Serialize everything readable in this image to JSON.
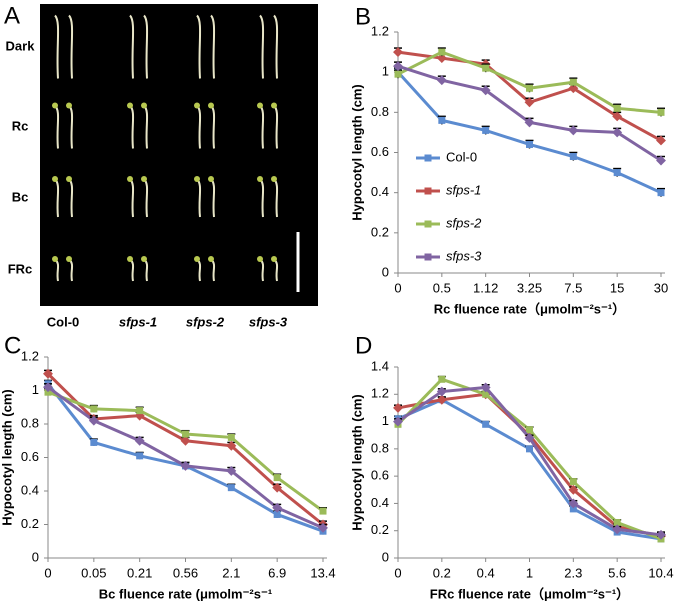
{
  "panel_a": {
    "letter": "A",
    "row_labels": [
      "Dark",
      "Rc",
      "Bc",
      "FRc"
    ],
    "column_labels": [
      "Col-0",
      "sfps-1",
      "sfps-2",
      "sfps-3"
    ]
  },
  "chart_data": [
    {
      "type": "line",
      "letter": "B",
      "x_label": "Rc fluence rate（μmolm⁻²s⁻¹）",
      "y_label": "Hypocotyl length (cm)",
      "categories": [
        "0",
        "0.5",
        "1.12",
        "3.25",
        "7.5",
        "15",
        "30"
      ],
      "ylim": [
        0,
        1.2
      ],
      "yticks": [
        0,
        0.2,
        0.4,
        0.6,
        0.8,
        1,
        1.2
      ],
      "legend": "left",
      "series": [
        {
          "name": "Col-0",
          "color": "#5b8bd0",
          "values": [
            1.0,
            0.76,
            0.71,
            0.64,
            0.58,
            0.5,
            0.4
          ],
          "errors": [
            0.02,
            0.02,
            0.02,
            0.02,
            0.02,
            0.02,
            0.02
          ]
        },
        {
          "name": "sfps-1",
          "color": "#c0504d",
          "values": [
            1.1,
            1.07,
            1.04,
            0.85,
            0.92,
            0.78,
            0.66
          ],
          "errors": [
            0.02,
            0.02,
            0.02,
            0.02,
            0.02,
            0.02,
            0.02
          ]
        },
        {
          "name": "sfps-2",
          "color": "#9bbb59",
          "values": [
            0.99,
            1.1,
            1.02,
            0.92,
            0.95,
            0.82,
            0.8
          ],
          "errors": [
            0.02,
            0.02,
            0.02,
            0.02,
            0.02,
            0.02,
            0.02
          ]
        },
        {
          "name": "sfps-3",
          "color": "#8064a2",
          "values": [
            1.03,
            0.96,
            0.91,
            0.75,
            0.71,
            0.7,
            0.56
          ],
          "errors": [
            0.02,
            0.02,
            0.02,
            0.02,
            0.02,
            0.02,
            0.02
          ]
        }
      ]
    },
    {
      "type": "line",
      "letter": "C",
      "x_label": "Bc fluence rate (μmolm⁻²s⁻¹",
      "y_label": "Hypocotyl length (cm)",
      "categories": [
        "0",
        "0.05",
        "0.21",
        "0.56",
        "2.1",
        "6.9",
        "13.4"
      ],
      "ylim": [
        0,
        1.2
      ],
      "yticks": [
        0,
        0.2,
        0.4,
        0.6,
        0.8,
        1,
        1.2
      ],
      "series": [
        {
          "name": "Col-0",
          "color": "#5b8bd0",
          "values": [
            1.04,
            0.69,
            0.61,
            0.55,
            0.42,
            0.26,
            0.16
          ],
          "errors": [
            0.02,
            0.02,
            0.02,
            0.02,
            0.02,
            0.02,
            0.02
          ]
        },
        {
          "name": "sfps-1",
          "color": "#c0504d",
          "values": [
            1.1,
            0.83,
            0.85,
            0.7,
            0.67,
            0.42,
            0.2
          ],
          "errors": [
            0.02,
            0.02,
            0.02,
            0.02,
            0.02,
            0.02,
            0.02
          ]
        },
        {
          "name": "sfps-2",
          "color": "#9bbb59",
          "values": [
            0.99,
            0.89,
            0.88,
            0.74,
            0.72,
            0.48,
            0.28
          ],
          "errors": [
            0.02,
            0.02,
            0.02,
            0.02,
            0.02,
            0.02,
            0.02
          ]
        },
        {
          "name": "sfps-3",
          "color": "#8064a2",
          "values": [
            1.02,
            0.82,
            0.7,
            0.55,
            0.52,
            0.3,
            0.18
          ],
          "errors": [
            0.02,
            0.02,
            0.02,
            0.02,
            0.02,
            0.02,
            0.02
          ]
        }
      ]
    },
    {
      "type": "line",
      "letter": "D",
      "x_label": "FRc fluence rate（μmolm⁻²s⁻¹）",
      "y_label": "Hypocotyl length (cm)",
      "categories": [
        "0",
        "0.2",
        "0.4",
        "1",
        "2.3",
        "5.6",
        "10.4"
      ],
      "ylim": [
        0,
        1.4
      ],
      "yticks": [
        0,
        0.2,
        0.4,
        0.6,
        0.8,
        1,
        1.2,
        1.4
      ],
      "series": [
        {
          "name": "Col-0",
          "color": "#5b8bd0",
          "values": [
            1.02,
            1.16,
            0.98,
            0.8,
            0.36,
            0.19,
            0.14
          ],
          "errors": [
            0.02,
            0.02,
            0.02,
            0.02,
            0.02,
            0.02,
            0.02
          ]
        },
        {
          "name": "sfps-1",
          "color": "#c0504d",
          "values": [
            1.1,
            1.16,
            1.2,
            0.9,
            0.5,
            0.23,
            0.16
          ],
          "errors": [
            0.02,
            0.02,
            0.02,
            0.02,
            0.02,
            0.02,
            0.02
          ]
        },
        {
          "name": "sfps-2",
          "color": "#9bbb59",
          "values": [
            0.98,
            1.31,
            1.2,
            0.94,
            0.56,
            0.26,
            0.14
          ],
          "errors": [
            0.02,
            0.02,
            0.02,
            0.02,
            0.02,
            0.02,
            0.02
          ]
        },
        {
          "name": "sfps-3",
          "color": "#8064a2",
          "values": [
            1.0,
            1.22,
            1.25,
            0.88,
            0.4,
            0.21,
            0.17
          ],
          "errors": [
            0.02,
            0.02,
            0.02,
            0.02,
            0.02,
            0.02,
            0.02
          ]
        }
      ]
    }
  ]
}
